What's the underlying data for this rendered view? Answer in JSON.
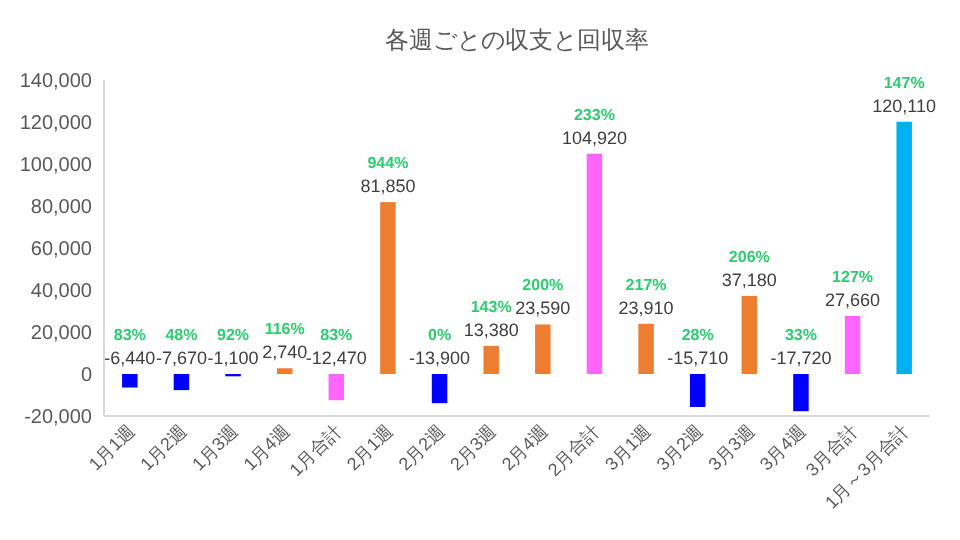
{
  "chart_data": {
    "type": "bar",
    "title": "各週ごとの収支と回収率",
    "categories": [
      "1月1週",
      "1月2週",
      "1月3週",
      "1月4週",
      "1月合計",
      "2月1週",
      "2月2週",
      "2月3週",
      "2月4週",
      "2月合計",
      "3月1週",
      "3月2週",
      "3月3週",
      "3月4週",
      "3月合計",
      "1月～3月合計"
    ],
    "values": [
      -6440,
      -7670,
      -1100,
      2740,
      -12470,
      81850,
      -13900,
      13380,
      23590,
      104920,
      23910,
      -15710,
      37180,
      -17720,
      27660,
      120110
    ],
    "colors": [
      "#0000ff",
      "#0000ff",
      "#0000ff",
      "#ed7d31",
      "#ff66ff",
      "#ed7d31",
      "#0000ff",
      "#ed7d31",
      "#ed7d31",
      "#ff66ff",
      "#ed7d31",
      "#0000ff",
      "#ed7d31",
      "#0000ff",
      "#ff66ff",
      "#00b0f0"
    ],
    "value_labels": [
      "-6,440",
      "-7,670",
      "-1,100",
      "2,740",
      "-12,470",
      "81,850",
      "-13,900",
      "13,380",
      "23,590",
      "104,920",
      "23,910",
      "-15,710",
      "37,180",
      "-17,720",
      "27,660",
      "120,110"
    ],
    "annotations": [
      {
        "text": "83%",
        "x": "1月1週",
        "y": 0
      },
      {
        "text": "48%",
        "x": "1月2週",
        "y": 0
      },
      {
        "text": "92%",
        "x": "1月3週",
        "y": 0
      },
      {
        "text": "116%",
        "x": "1月4週",
        "y": 2740
      },
      {
        "text": "83%",
        "x": "1月合計",
        "y": 0
      },
      {
        "text": "944%",
        "x": "2月1週",
        "y": 81850
      },
      {
        "text": "0%",
        "x": "2月2週",
        "y": 0
      },
      {
        "text": "143%",
        "x": "2月3週",
        "y": 13380
      },
      {
        "text": "200%",
        "x": "2月4週",
        "y": 23590
      },
      {
        "text": "233%",
        "x": "2月合計",
        "y": 104920
      },
      {
        "text": "217%",
        "x": "3月1週",
        "y": 23910
      },
      {
        "text": "28%",
        "x": "3月2週",
        "y": 0
      },
      {
        "text": "206%",
        "x": "3月3週",
        "y": 37180
      },
      {
        "text": "33%",
        "x": "3月4週",
        "y": 0
      },
      {
        "text": "127%",
        "x": "3月合計",
        "y": 27660
      },
      {
        "text": "147%",
        "x": "1月～3月合計",
        "y": 120110
      }
    ],
    "ylim": [
      -20000,
      140000
    ],
    "yticks": [
      {
        "value": -20000,
        "label": "-20,000"
      },
      {
        "value": 0,
        "label": "0"
      },
      {
        "value": 20000,
        "label": "20,000"
      },
      {
        "value": 40000,
        "label": "40,000"
      },
      {
        "value": 60000,
        "label": "60,000"
      },
      {
        "value": 80000,
        "label": "80,000"
      },
      {
        "value": 100000,
        "label": "100,000"
      },
      {
        "value": 120000,
        "label": "120,000"
      },
      {
        "value": 140000,
        "label": "140,000"
      }
    ],
    "grid": false
  }
}
